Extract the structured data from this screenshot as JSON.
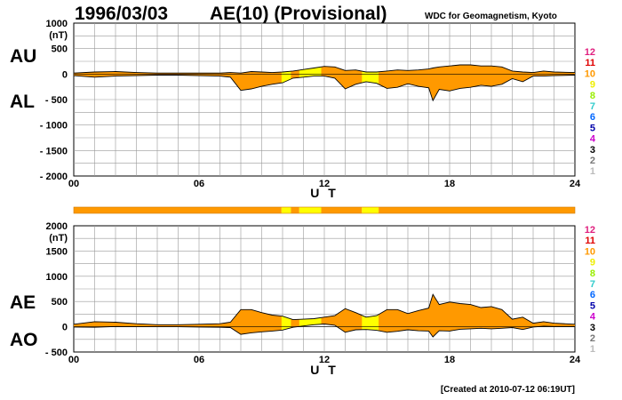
{
  "header": {
    "date": "1996/03/03",
    "title": "AE(10) (Provisional)",
    "source": "WDC for Geomagnetism, Kyoto"
  },
  "footer": {
    "created": "[Created at 2010-07-12 06:19UT]"
  },
  "legend": {
    "items": [
      {
        "label": "12",
        "color": "#e0207f"
      },
      {
        "label": "11",
        "color": "#e00000"
      },
      {
        "label": "10",
        "color": "#ff9900"
      },
      {
        "label": "9",
        "color": "#eeee00"
      },
      {
        "label": "8",
        "color": "#99ee00"
      },
      {
        "label": "7",
        "color": "#33cccc"
      },
      {
        "label": "6",
        "color": "#0066ff"
      },
      {
        "label": "5",
        "color": "#0000aa"
      },
      {
        "label": "4",
        "color": "#cc00cc"
      },
      {
        "label": "3",
        "color": "#000000"
      },
      {
        "label": "2",
        "color": "#777777"
      },
      {
        "label": "1",
        "color": "#bbbbbb"
      }
    ]
  },
  "colors": {
    "fill_10": "#ff9900",
    "fill_9": "#ffff00",
    "grid": "#999999"
  },
  "chart_data": [
    {
      "type": "area",
      "panel": "AU/AL",
      "ylabel": "(nT)",
      "xlabel": "U T",
      "ylim": [
        -2000,
        1000
      ],
      "y_ticks": [
        "1000",
        "500",
        "0",
        "- 500",
        "- 1000",
        "- 1500",
        "- 2000"
      ],
      "x_ticks": [
        "00",
        "06",
        "12",
        "18",
        "24"
      ],
      "x_range": [
        0,
        24
      ],
      "side_labels": {
        "upper": "AU",
        "lower": "AL"
      },
      "x": [
        0,
        1,
        2,
        3,
        4,
        5,
        6,
        7,
        7.5,
        8,
        8.5,
        9,
        9.5,
        10,
        10.5,
        11,
        11.5,
        12,
        12.5,
        13,
        13.5,
        14,
        14.5,
        15,
        15.5,
        16,
        16.5,
        17,
        17.2,
        17.5,
        18,
        18.5,
        19,
        19.5,
        20,
        20.5,
        21,
        21.5,
        22,
        22.5,
        23,
        24
      ],
      "series": [
        {
          "name": "AU",
          "values": [
            20,
            40,
            50,
            30,
            20,
            20,
            20,
            20,
            30,
            20,
            50,
            40,
            30,
            40,
            60,
            90,
            120,
            150,
            140,
            70,
            80,
            40,
            40,
            60,
            80,
            70,
            80,
            100,
            120,
            140,
            160,
            180,
            180,
            160,
            160,
            140,
            60,
            40,
            30,
            60,
            40,
            30
          ]
        },
        {
          "name": "AL",
          "values": [
            -30,
            -60,
            -40,
            -30,
            -20,
            -20,
            -30,
            -40,
            -60,
            -320,
            -290,
            -240,
            -200,
            -170,
            -80,
            -60,
            -40,
            -40,
            -80,
            -290,
            -200,
            -150,
            -180,
            -280,
            -260,
            -190,
            -240,
            -270,
            -520,
            -300,
            -330,
            -280,
            -260,
            -220,
            -240,
            -200,
            -90,
            -150,
            -40,
            -40,
            -30,
            -20
          ]
        }
      ]
    },
    {
      "type": "area",
      "panel": "AE/AO",
      "ylabel": "(nT)",
      "xlabel": "U T",
      "ylim": [
        -500,
        2000
      ],
      "y_ticks": [
        "2000",
        "1500",
        "1000",
        "500",
        "0",
        "- 500"
      ],
      "x_ticks": [
        "00",
        "06",
        "12",
        "18",
        "24"
      ],
      "x_range": [
        0,
        24
      ],
      "side_labels": {
        "upper": "AE",
        "lower": "AO"
      },
      "x": [
        0,
        1,
        2,
        3,
        4,
        5,
        6,
        7,
        7.5,
        8,
        8.5,
        9,
        9.5,
        10,
        10.5,
        11,
        11.5,
        12,
        12.5,
        13,
        13.5,
        14,
        14.5,
        15,
        15.5,
        16,
        16.5,
        17,
        17.2,
        17.5,
        18,
        18.5,
        19,
        19.5,
        20,
        20.5,
        21,
        21.5,
        22,
        22.5,
        23,
        24
      ],
      "series": [
        {
          "name": "AE",
          "values": [
            50,
            100,
            90,
            60,
            40,
            40,
            50,
            60,
            90,
            340,
            340,
            280,
            230,
            210,
            140,
            150,
            160,
            190,
            220,
            360,
            280,
            190,
            220,
            340,
            340,
            260,
            320,
            370,
            640,
            440,
            490,
            460,
            440,
            380,
            400,
            340,
            150,
            190,
            70,
            100,
            70,
            50
          ]
        },
        {
          "name": "AO",
          "values": [
            -5,
            -10,
            5,
            0,
            0,
            0,
            -5,
            -10,
            -15,
            -150,
            -120,
            -100,
            -85,
            -65,
            -10,
            15,
            40,
            55,
            30,
            -110,
            -60,
            -55,
            -70,
            -110,
            -90,
            -60,
            -80,
            -85,
            -200,
            -80,
            -85,
            -50,
            -40,
            -30,
            -40,
            -30,
            -15,
            -55,
            -5,
            10,
            5,
            5
          ]
        }
      ]
    }
  ],
  "activity_bar": {
    "segments": [
      {
        "from": 0.0,
        "to": 9.95,
        "level": "10"
      },
      {
        "from": 9.95,
        "to": 10.4,
        "level": "9"
      },
      {
        "from": 10.4,
        "to": 10.8,
        "level": "10"
      },
      {
        "from": 10.8,
        "to": 11.85,
        "level": "9"
      },
      {
        "from": 11.85,
        "to": 13.8,
        "level": "10"
      },
      {
        "from": 13.8,
        "to": 14.6,
        "level": "9"
      },
      {
        "from": 14.6,
        "to": 24.0,
        "level": "10"
      }
    ]
  }
}
